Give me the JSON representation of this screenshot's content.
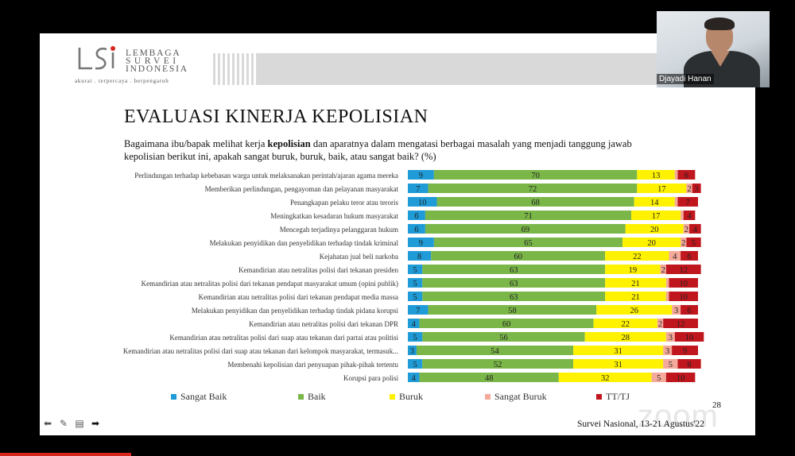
{
  "logo": {
    "line1": "LEMBAGA",
    "line2": "SURVEI",
    "line3": "INDONESIA",
    "tagline": "akurat . terpercaya . berpengaruh"
  },
  "slide": {
    "title": "EVALUASI KINERJA KEPOLISIAN",
    "question_pre": "Bagaimana ibu/bapak melihat kerja ",
    "question_bold": "kepolisian",
    "question_post": " dan aparatnya dalam mengatasi berbagai masalah yang menjadi tanggung jawab kepolisian berikut ini, apakah sangat buruk, buruk, baik, atau sangat baik? (%)",
    "page_number": "28",
    "footer": "Survei Nasional, 13-21 Agustus'22"
  },
  "watermark": "zoom",
  "video": {
    "participant_name": "Djayadi Hanan"
  },
  "colors": {
    "sangat_baik": "#1f9bd7",
    "baik": "#7ab648",
    "buruk": "#fff200",
    "sangat_buruk": "#f4a99a",
    "tt_tj": "#c0161d"
  },
  "chart_data": {
    "type": "bar",
    "orientation": "horizontal",
    "stacked": true,
    "unit": "%",
    "categories": [
      "Perlindungan terhadap kebebasan warga untuk  melaksanakan perintah/ajaran agama mereka",
      "Memberikan perlindungan, pengayoman dan pelayanan masyarakat",
      "Penangkapan pelaku teror atau teroris",
      "Meningkatkan kesadaran hukum masyarakat",
      "Mencegah terjadinya pelanggaran hukum",
      "Melakukan penyidikan dan penyelidikan terhadap tindak kriminal",
      "Kejahatan jual beli narkoba",
      "Kemandirian atau netralitas polisi dari tekanan presiden",
      "Kemandirian atau netralitas polisi dari tekanan pendapat masyarakat umum (opini publik)",
      "Kemandirian atau netralitas polisi dari tekanan pendapat media massa",
      "Melakukan penyidikan dan penyelidikan terhadap tindak pidana korupsi",
      "Kemandirian atau netralitas polisi dari tekanan DPR",
      "Kemandirian atau netralitas polisi dari suap atau tekanan dari partai atau politisi",
      "Kemandirian atau netralitas polisi dari suap atau tekanan dari kelompok masyarakat, termasuk...",
      "Membenahi kepolisian dari penyuapan pihak-pihak tertentu",
      "Korupsi para polisi"
    ],
    "series": [
      {
        "name": "Sangat Baik",
        "values": [
          9,
          7,
          10,
          6,
          6,
          9,
          8,
          5,
          5,
          5,
          7,
          4,
          5,
          3,
          5,
          4
        ]
      },
      {
        "name": "Baik",
        "values": [
          70,
          72,
          68,
          71,
          69,
          65,
          60,
          63,
          63,
          63,
          58,
          60,
          56,
          54,
          52,
          48
        ]
      },
      {
        "name": "Buruk",
        "values": [
          13,
          17,
          14,
          17,
          20,
          20,
          22,
          19,
          21,
          21,
          26,
          22,
          28,
          31,
          31,
          32
        ]
      },
      {
        "name": "Sangat Buruk",
        "values": [
          1,
          2,
          1,
          1,
          2,
          2,
          4,
          2,
          1,
          1,
          3,
          2,
          3,
          3,
          5,
          5
        ]
      },
      {
        "name": "TT/TJ",
        "values": [
          6,
          3,
          7,
          4,
          4,
          5,
          6,
          12,
          10,
          10,
          6,
          12,
          10,
          9,
          8,
          10
        ]
      }
    ],
    "hidden_labels": [
      [
        false,
        false,
        false,
        true,
        false
      ],
      [
        false,
        false,
        false,
        false,
        false
      ],
      [
        false,
        false,
        false,
        true,
        false
      ],
      [
        false,
        false,
        false,
        true,
        false
      ],
      [
        false,
        false,
        false,
        false,
        false
      ],
      [
        false,
        false,
        false,
        false,
        false
      ],
      [
        false,
        false,
        false,
        false,
        false
      ],
      [
        false,
        false,
        false,
        false,
        false
      ],
      [
        false,
        false,
        false,
        true,
        false
      ],
      [
        false,
        false,
        false,
        true,
        false
      ],
      [
        false,
        false,
        false,
        false,
        false
      ],
      [
        false,
        false,
        false,
        false,
        false
      ],
      [
        false,
        false,
        false,
        false,
        false
      ],
      [
        false,
        false,
        false,
        false,
        false
      ],
      [
        false,
        false,
        false,
        false,
        false
      ],
      [
        false,
        false,
        false,
        false,
        false
      ]
    ],
    "xlim": [
      0,
      100
    ],
    "legend_position": "bottom"
  }
}
